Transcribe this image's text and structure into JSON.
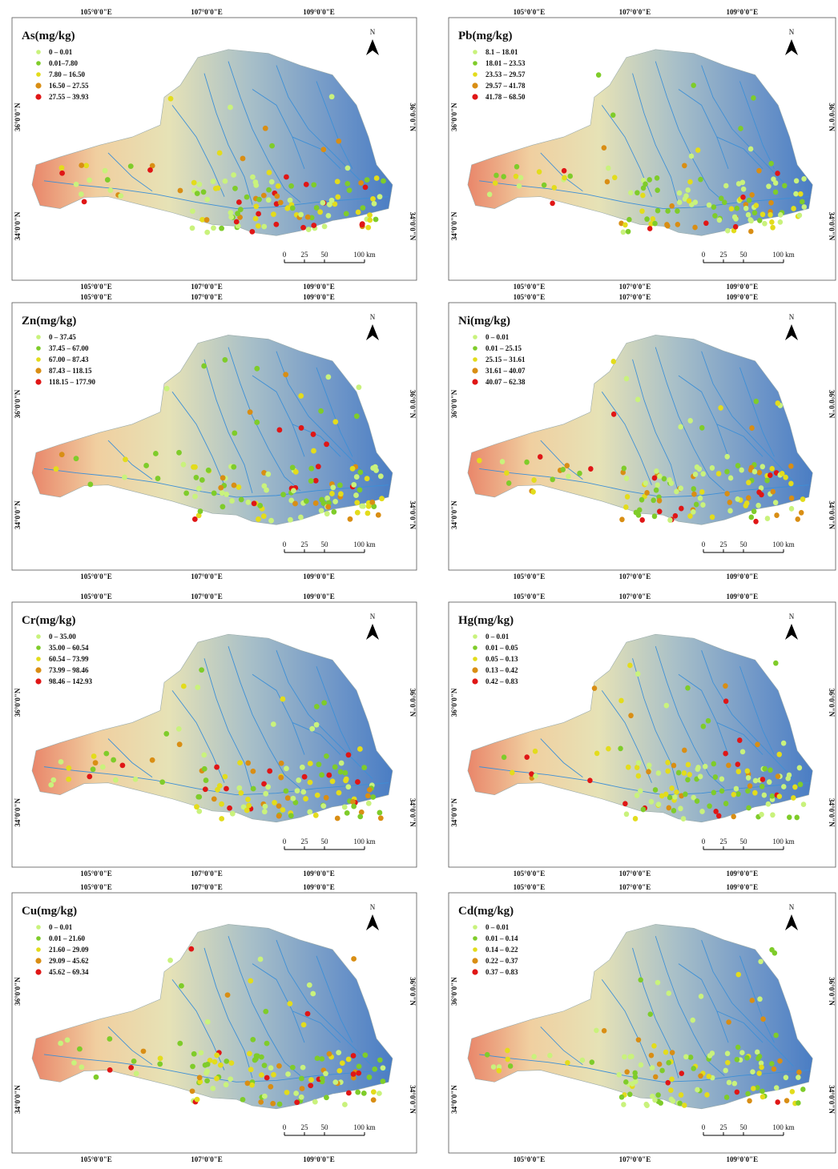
{
  "class_colors": [
    "#c9f27c",
    "#7fcc2a",
    "#e3dc1c",
    "#d98e14",
    "#e01616"
  ],
  "panels": [
    {
      "title": "As(mg/kg)",
      "legend": [
        "0 – 0.01",
        "0.01–7.80",
        "7.80 – 16.50",
        "16.50 – 27.55",
        "27.55 – 39.93"
      ],
      "north": "N",
      "lon_top": [
        "105°0'0\"E",
        "107°0'0\"E",
        "109°0'0\"E"
      ],
      "lon_bottom": [
        "105°0'0\"E",
        "107°0'0\"E",
        "109°0'0\"E"
      ],
      "lat_left": [
        "36°0'0\"N",
        "34°0'0\"N"
      ],
      "lat_right": [
        "36°0'0\"N",
        "34°0'0\"N"
      ],
      "scale": [
        "0",
        "25",
        "50",
        "100 km"
      ]
    },
    {
      "title": "Pb(mg/kg)",
      "legend": [
        "8.1 – 18.01",
        "18.01 – 23.53",
        "23.53 – 29.57",
        "29.57 – 41.78",
        "41.78 – 68.50"
      ],
      "north": "N",
      "lon_top": [
        "105°0'0\"E",
        "107°0'0\"E",
        "109°0'0\"E"
      ],
      "lon_bottom": [
        "105°0'0\"E",
        "107°0'0\"E",
        "109°0'0\"E"
      ],
      "lat_left": [
        "36°0'0\"N",
        "34°0'0\"N"
      ],
      "lat_right": [
        "36°0'0\"N",
        "34°0'0\"N"
      ],
      "scale": [
        "0",
        "25",
        "50",
        "100 km"
      ]
    },
    {
      "title": "Zn(mg/kg)",
      "legend": [
        "0 – 37.45",
        "37.45 – 67.00",
        "67.00 – 87.43",
        "87.43 – 118.15",
        "118.15 – 177.90"
      ],
      "north": "N",
      "lon_top": [
        "105°0'0\"E",
        "107°0'0\"E",
        "109°0'0\"E"
      ],
      "lon_bottom": [
        "105°0'0\"E",
        "107°0'0\"E",
        "109°0'0\"E"
      ],
      "lat_left": [
        "36°0'0\"N",
        "34°0'0\"N"
      ],
      "lat_right": [
        "36°0'0\"N",
        "34°0'0\"N"
      ],
      "scale": [
        "0",
        "25",
        "50",
        "100 km"
      ]
    },
    {
      "title": "Ni(mg/kg)",
      "legend": [
        "0 – 0.01",
        "0.01 – 25.15",
        "25.15 – 31.61",
        "31.61 – 40.07",
        "40.07 – 62.38"
      ],
      "north": "N",
      "lon_top": [
        "105°0'0\"E",
        "107°0'0\"E",
        "109°0'0\"E"
      ],
      "lon_bottom": [
        "105°0'0\"E",
        "107°0'0\"E",
        "109°0'0\"E"
      ],
      "lat_left": [
        "36°0'0\"N",
        "34°0'0\"N"
      ],
      "lat_right": [
        "36°0'0\"N",
        "34°0'0\"N"
      ],
      "scale": [
        "0",
        "25",
        "50",
        "100 km"
      ]
    },
    {
      "title": "Cr(mg/kg)",
      "legend": [
        "0 – 35.00",
        "35.00 – 60.54",
        "60.54 – 73.99",
        "73.99 – 98.46",
        "98.46 – 142.93"
      ],
      "north": "N",
      "lon_top": [
        "105°0'0\"E",
        "107°0'0\"E",
        "109°0'0\"E"
      ],
      "lon_bottom": [
        "105°0'0\"E",
        "107°0'0\"E",
        "109°0'0\"E"
      ],
      "lat_left": [
        "36°0'0\"N",
        "34°0'0\"N"
      ],
      "lat_right": [
        "36°0'0\"N",
        "34°0'0\"N"
      ],
      "scale": [
        "0",
        "25",
        "50",
        "100 km"
      ]
    },
    {
      "title": "Hg(mg/kg)",
      "legend": [
        "0 – 0.01",
        "0.01 – 0.05",
        "0.05 – 0.13",
        "0.13 – 0.42",
        "0.42 – 0.83"
      ],
      "north": "N",
      "lon_top": [
        "105°0'0\"E",
        "107°0'0\"E",
        "109°0'0\"E"
      ],
      "lon_bottom": [
        "105°0'0\"E",
        "107°0'0\"E",
        "109°0'0\"E"
      ],
      "lat_left": [
        "36°0'0\"N",
        "34°0'0\"N"
      ],
      "lat_right": [
        "36°0'0\"N",
        "34°0'0\"N"
      ],
      "scale": [
        "0",
        "25",
        "50",
        "100 km"
      ]
    },
    {
      "title": "Cu(mg/kg)",
      "legend": [
        "0 – 0.01",
        "0.01 – 21.60",
        "21.60 – 29.09",
        "29.09 – 45.62",
        "45.62 – 69.34"
      ],
      "north": "N",
      "lon_top": [
        "105°0'0\"E",
        "107°0'0\"E",
        "109°0'0\"E"
      ],
      "lon_bottom": [
        "105°0'0\"E",
        "107°0'0\"E",
        "109°0'0\"E"
      ],
      "lat_left": [
        "36°0'0\"N",
        "34°0'0\"N"
      ],
      "lat_right": [
        "36°0'0\"N",
        "34°0'0\"N"
      ],
      "scale": [
        "0",
        "25",
        "50",
        "100 km"
      ]
    },
    {
      "title": "Cd(mg/kg)",
      "legend": [
        "0 – 0.01",
        "0.01 – 0.14",
        "0.14 – 0.22",
        "0.22 – 0.37",
        "0.37 – 0.83"
      ],
      "north": "N",
      "lon_top": [
        "105°0'0\"E",
        "107°0'0\"E",
        "109°0'0\"E"
      ],
      "lon_bottom": [
        "105°0'0\"E",
        "107°0'0\"E",
        "109°0'0\"E"
      ],
      "lat_left": [
        "36°0'0\"N",
        "34°0'0\"N"
      ],
      "lat_right": [
        "36°0'0\"N",
        "34°0'0\"N"
      ],
      "scale": [
        "0",
        "25",
        "50",
        "100 km"
      ]
    }
  ]
}
